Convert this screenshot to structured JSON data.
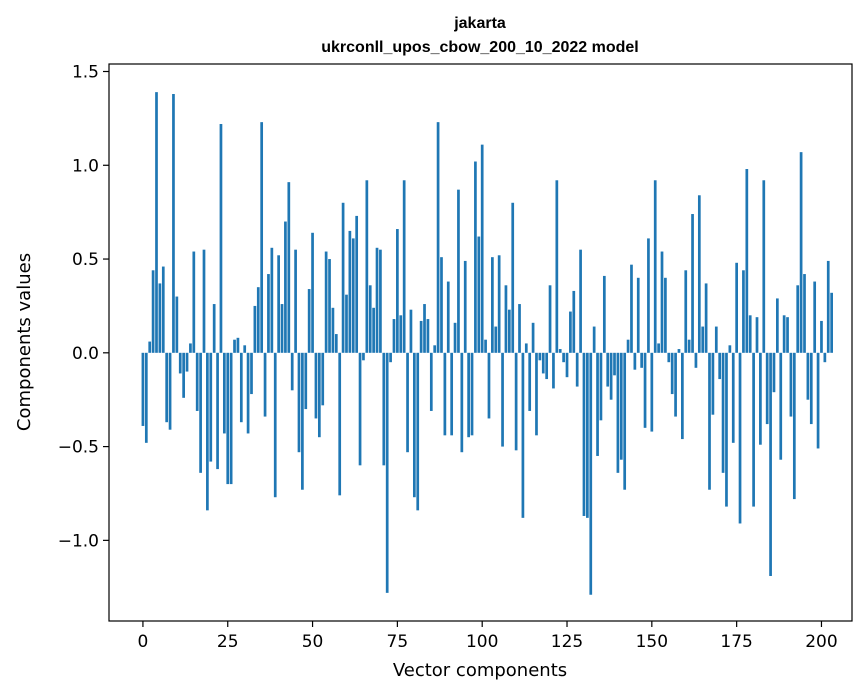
{
  "chart_data": {
    "type": "bar",
    "title": "jakarta",
    "subtitle": "ukrconll_upos_cbow_200_10_2022 model",
    "xlabel": "Vector components",
    "ylabel": "Components values",
    "xlim": [
      -10,
      209
    ],
    "ylim": [
      -1.43,
      1.54
    ],
    "xticks": [
      0,
      25,
      50,
      75,
      100,
      125,
      150,
      175,
      200
    ],
    "xtick_labels": [
      "0",
      "25",
      "50",
      "75",
      "100",
      "125",
      "150",
      "175",
      "200"
    ],
    "yticks": [
      -1.0,
      -0.5,
      0.0,
      0.5,
      1.0,
      1.5
    ],
    "ytick_labels": [
      "−1.0",
      "−0.5",
      "0.0",
      "0.5",
      "1.0",
      "1.5"
    ],
    "bar_color": "#1f77b4",
    "grid": false,
    "values": [
      -0.39,
      -0.48,
      0.06,
      0.44,
      1.39,
      0.37,
      0.46,
      -0.37,
      -0.41,
      1.38,
      0.3,
      -0.11,
      -0.24,
      -0.1,
      0.05,
      0.54,
      -0.31,
      -0.64,
      0.55,
      -0.84,
      -0.58,
      0.26,
      -0.62,
      1.22,
      -0.43,
      -0.7,
      -0.7,
      0.07,
      0.08,
      -0.37,
      0.04,
      -0.43,
      -0.22,
      0.25,
      0.35,
      1.23,
      -0.34,
      0.42,
      0.56,
      -0.77,
      0.52,
      0.26,
      0.7,
      0.91,
      -0.2,
      0.55,
      -0.53,
      -0.73,
      -0.3,
      0.34,
      0.64,
      -0.35,
      -0.45,
      -0.28,
      0.54,
      0.5,
      0.24,
      0.1,
      -0.76,
      0.8,
      0.31,
      0.65,
      0.61,
      0.73,
      -0.6,
      -0.04,
      0.92,
      0.36,
      0.24,
      0.56,
      0.55,
      -0.6,
      -1.28,
      -0.05,
      0.18,
      0.66,
      0.2,
      0.92,
      -0.53,
      0.23,
      -0.77,
      -0.84,
      0.17,
      0.26,
      0.18,
      -0.31,
      0.04,
      1.23,
      0.51,
      -0.44,
      0.38,
      -0.44,
      0.16,
      0.87,
      -0.53,
      0.49,
      -0.45,
      -0.44,
      1.02,
      0.62,
      1.11,
      0.07,
      -0.35,
      0.51,
      0.14,
      0.52,
      -0.5,
      0.36,
      0.23,
      0.8,
      -0.52,
      0.26,
      -0.88,
      0.05,
      -0.31,
      0.16,
      -0.44,
      -0.04,
      -0.11,
      -0.14,
      0.36,
      -0.19,
      0.92,
      0.02,
      -0.05,
      -0.13,
      0.22,
      0.33,
      -0.18,
      0.55,
      -0.87,
      -0.88,
      -1.29,
      0.14,
      -0.55,
      -0.36,
      0.41,
      -0.18,
      -0.25,
      -0.12,
      -0.64,
      -0.57,
      -0.73,
      0.07,
      0.47,
      -0.09,
      0.4,
      -0.08,
      -0.4,
      0.61,
      -0.42,
      0.92,
      0.05,
      0.54,
      0.4,
      -0.05,
      -0.22,
      -0.34,
      0.02,
      -0.46,
      0.44,
      0.07,
      0.74,
      -0.08,
      0.84,
      0.14,
      0.37,
      -0.73,
      -0.33,
      0.14,
      -0.14,
      -0.64,
      -0.82,
      0.04,
      -0.48,
      0.48,
      -0.91,
      0.44,
      0.98,
      0.2,
      -0.82,
      0.19,
      -0.49,
      0.92,
      -0.38,
      -1.19,
      -0.21,
      0.29,
      -0.57,
      0.2,
      0.19,
      -0.34,
      -0.78,
      0.36,
      1.07,
      0.42,
      -0.25,
      -0.38,
      0.38,
      -0.51,
      0.17,
      -0.05,
      0.49,
      0.32
    ]
  }
}
